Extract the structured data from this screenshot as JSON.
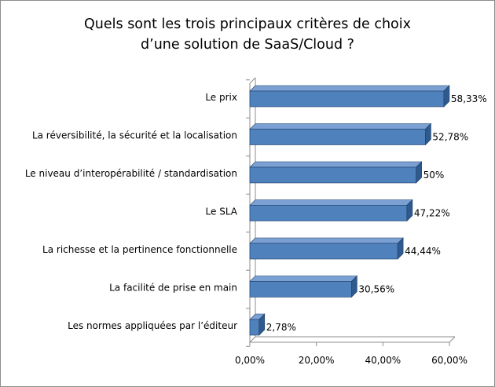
{
  "chart_data": {
    "type": "bar",
    "orientation": "horizontal",
    "style": "3d",
    "title_lines": [
      "Quels sont les trois principaux critères de choix",
      "d’une solution de SaaS/Cloud ?"
    ],
    "categories": [
      "Le prix",
      "La réversibilité, la sécurité et la localisation",
      "Le niveau d’interopérabilité / standardisation",
      "Le SLA",
      "La richesse et la pertinence fonctionnelle",
      "La facilité de prise en main",
      "Les normes appliquées par l’éditeur"
    ],
    "values": [
      58.33,
      52.78,
      50,
      47.22,
      44.44,
      30.56,
      2.78
    ],
    "data_labels": [
      "58,33%",
      "52,78%",
      "50%",
      "47,22%",
      "44,44%",
      "30,56%",
      "2,78%"
    ],
    "xlim": [
      0,
      60
    ],
    "x_ticks": [
      0,
      20,
      40,
      60
    ],
    "x_tick_labels": [
      "0,00%",
      "20,00%",
      "40,00%",
      "60,00%"
    ],
    "grid": false,
    "legend": "none",
    "colors": {
      "bar_front": "#4f81bd",
      "bar_top": "#7ba0d4",
      "bar_side": "#2f5a8e",
      "bar_edge": "#1f3f66",
      "axis": "#8c8c8c"
    }
  }
}
